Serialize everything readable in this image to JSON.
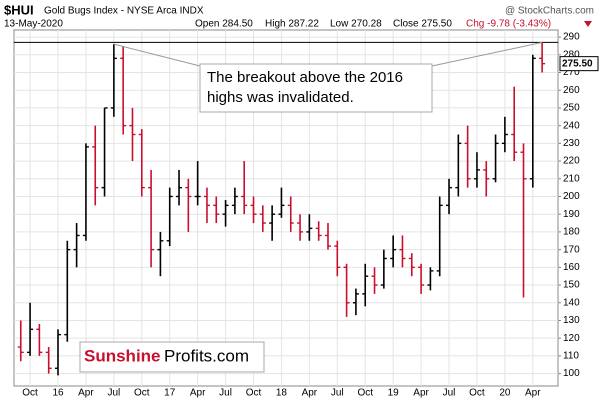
{
  "chart_data": {
    "type": "ohlc",
    "symbol": "$HUI",
    "title": "Gold Bugs Index - NYSE Arca  INDX",
    "date": "13-May-2020",
    "quote": [
      "Open 284.50",
      "High 287.22",
      "Low 270.28",
      "Close 275.50",
      "Chg -9.78 (-3.43%)"
    ],
    "last_price": "275.50",
    "source": "@ StockCharts.com",
    "annotation": [
      "The breakout above the 2016",
      "highs was invalidated."
    ],
    "logo": [
      "Sunshine",
      "Profits.com"
    ],
    "resistance": 287,
    "up_color": "#000000",
    "down_color": "#c8102e",
    "categories": [
      null,
      "Oct",
      null,
      null,
      "16",
      null,
      null,
      "Apr",
      null,
      null,
      "Jul",
      null,
      null,
      "Oct",
      null,
      null,
      "17",
      null,
      null,
      "Apr",
      null,
      null,
      "Jul",
      null,
      null,
      "Oct",
      null,
      null,
      "18",
      null,
      null,
      "Apr",
      null,
      null,
      "Jul",
      null,
      null,
      "Oct",
      null,
      null,
      "19",
      null,
      null,
      "Apr",
      null,
      null,
      "Jul",
      null,
      null,
      "Oct",
      null,
      null,
      "20",
      null,
      null,
      "Apr",
      null
    ],
    "open": [
      115,
      112,
      125,
      112,
      103,
      122,
      170,
      178,
      228,
      205,
      250,
      278,
      240,
      235,
      205,
      170,
      175,
      200,
      205,
      200,
      200,
      195,
      190,
      195,
      200,
      195,
      190,
      185,
      190,
      195,
      185,
      180,
      182,
      178,
      172,
      160,
      140,
      145,
      155,
      150,
      165,
      170,
      165,
      160,
      150,
      158,
      195,
      205,
      230,
      210,
      215,
      210,
      230,
      235,
      225,
      210,
      278
    ],
    "high": [
      130,
      140,
      128,
      115,
      125,
      175,
      185,
      230,
      240,
      250,
      286,
      285,
      250,
      238,
      215,
      180,
      205,
      215,
      210,
      220,
      205,
      200,
      198,
      205,
      220,
      200,
      195,
      195,
      205,
      200,
      190,
      190,
      186,
      185,
      175,
      162,
      148,
      162,
      160,
      170,
      178,
      178,
      168,
      162,
      160,
      200,
      210,
      235,
      240,
      225,
      220,
      235,
      245,
      262,
      230,
      280,
      287
    ],
    "low": [
      107,
      110,
      110,
      100,
      99,
      118,
      160,
      175,
      195,
      200,
      245,
      235,
      220,
      200,
      160,
      155,
      172,
      195,
      180,
      195,
      185,
      185,
      183,
      190,
      190,
      185,
      180,
      175,
      188,
      180,
      175,
      175,
      175,
      170,
      155,
      132,
      133,
      138,
      145,
      148,
      160,
      160,
      155,
      145,
      147,
      155,
      190,
      200,
      205,
      205,
      200,
      208,
      225,
      220,
      143,
      205,
      270
    ],
    "close": [
      112,
      125,
      112,
      103,
      122,
      170,
      178,
      228,
      205,
      250,
      278,
      240,
      235,
      205,
      170,
      175,
      200,
      205,
      200,
      200,
      195,
      190,
      195,
      200,
      195,
      190,
      185,
      190,
      195,
      185,
      180,
      182,
      178,
      172,
      160,
      140,
      145,
      155,
      150,
      165,
      170,
      165,
      160,
      150,
      158,
      195,
      205,
      230,
      210,
      215,
      210,
      230,
      235,
      225,
      210,
      278,
      275
    ],
    "ylim": [
      93,
      294
    ],
    "yticks": [
      100,
      110,
      120,
      130,
      140,
      150,
      160,
      170,
      180,
      190,
      200,
      210,
      220,
      230,
      240,
      250,
      260,
      270,
      280,
      290
    ],
    "grid": true
  }
}
